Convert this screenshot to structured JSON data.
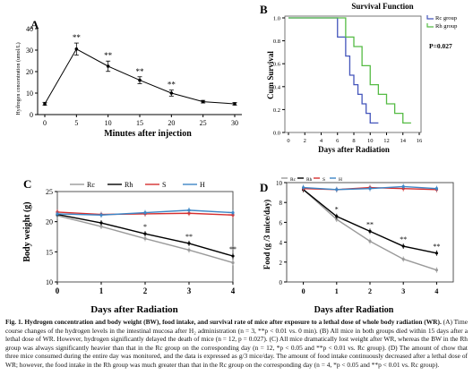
{
  "chart_data": [
    {
      "panel_label": "A",
      "type": "line",
      "xlabel": "Minutes after injection",
      "ylabel": "Hydrogen concentration (umol/L)",
      "xlim": [
        0,
        30
      ],
      "ylim": [
        0,
        40
      ],
      "xticks": [
        "0",
        "5",
        "10",
        "15",
        "20",
        "25",
        "30"
      ],
      "yticks": [
        "0",
        "10",
        "20",
        "30",
        "40"
      ],
      "series": [
        {
          "x": [
            0,
            5,
            10,
            15,
            20,
            25,
            30
          ],
          "y": [
            5,
            30.5,
            22.5,
            16,
            10,
            6,
            5
          ],
          "err": [
            0.7,
            2.8,
            2.4,
            1.6,
            1.4,
            0.6,
            0.6
          ],
          "sig": [
            "",
            "**",
            "**",
            "**",
            "**",
            "",
            ""
          ],
          "color": "#000000"
        }
      ]
    },
    {
      "panel_label": "B",
      "type": "line",
      "title": "Survival Function",
      "xlabel": "Days after Radiation",
      "ylabel": "Cum Survival",
      "xlim": [
        0,
        16
      ],
      "ylim": [
        0,
        1.0
      ],
      "xticks": [
        "0",
        "2",
        "4",
        "6",
        "8",
        "10",
        "12",
        "14",
        "16"
      ],
      "yticks": [
        "0.0",
        "0.2",
        "0.4",
        "0.6",
        "0.8",
        "1.0"
      ],
      "legend": [
        "Rc group",
        "Rh group"
      ],
      "annotation": "P=0.027",
      "series": [
        {
          "name": "Rc group",
          "color": "#4455bb",
          "steps": [
            [
              0,
              1.0
            ],
            [
              6,
              0.833
            ],
            [
              7,
              0.667
            ],
            [
              7.5,
              0.5
            ],
            [
              8,
              0.417
            ],
            [
              8.5,
              0.333
            ],
            [
              9,
              0.25
            ],
            [
              9.5,
              0.167
            ],
            [
              10,
              0.083
            ],
            [
              11,
              0.083
            ]
          ]
        },
        {
          "name": "Rh group",
          "color": "#55bb44",
          "steps": [
            [
              0,
              1.0
            ],
            [
              7,
              0.833
            ],
            [
              8,
              0.75
            ],
            [
              9,
              0.583
            ],
            [
              10,
              0.417
            ],
            [
              11,
              0.333
            ],
            [
              12,
              0.25
            ],
            [
              13,
              0.167
            ],
            [
              14,
              0.083
            ],
            [
              15,
              0.083
            ]
          ]
        }
      ]
    },
    {
      "panel_label": "C",
      "type": "line",
      "xlabel": "Days after Radiation",
      "ylabel": "Body weight (g)",
      "xlim": [
        0,
        4
      ],
      "ylim": [
        10,
        25
      ],
      "xticks": [
        "0",
        "1",
        "2",
        "3",
        "4"
      ],
      "yticks": [
        "10",
        "15",
        "20",
        "25"
      ],
      "legend": [
        "Rc",
        "Rh",
        "S",
        "H"
      ],
      "categories": [
        0,
        1,
        2,
        3,
        4
      ],
      "series": [
        {
          "name": "Rc",
          "color": "#9a9a9a",
          "values": [
            21.0,
            19.2,
            17.2,
            15.3,
            13.2
          ],
          "sig": [
            "",
            "",
            "",
            "",
            ""
          ]
        },
        {
          "name": "Rh",
          "color": "#000000",
          "values": [
            21.2,
            19.8,
            18.0,
            16.4,
            14.3
          ],
          "sig": [
            "",
            "",
            "*",
            "**",
            "**"
          ]
        },
        {
          "name": "S",
          "color": "#d62f2f",
          "values": [
            21.6,
            21.2,
            21.3,
            21.4,
            21.1
          ],
          "sig": [
            "",
            "",
            "",
            "",
            ""
          ]
        },
        {
          "name": "H",
          "color": "#3d86c6",
          "values": [
            21.3,
            21.1,
            21.5,
            21.9,
            21.5
          ],
          "sig": [
            "",
            "",
            "",
            "",
            ""
          ]
        }
      ]
    },
    {
      "panel_label": "D",
      "type": "line",
      "xlabel": "Days after Radiation",
      "ylabel": "Food (g /3 mice/day)",
      "xlim": [
        -0.5,
        4.5
      ],
      "ylim": [
        0,
        10
      ],
      "xticks": [
        "0",
        "1",
        "2",
        "3",
        "4"
      ],
      "yticks": [
        "0",
        "2",
        "4",
        "6",
        "8",
        "10"
      ],
      "legend": [
        "Rc",
        "Rh",
        "S",
        "H"
      ],
      "categories": [
        0,
        1,
        2,
        3,
        4
      ],
      "series": [
        {
          "name": "Rc",
          "color": "#9a9a9a",
          "values": [
            9.3,
            6.3,
            4.1,
            2.3,
            1.2
          ],
          "sig": [
            "",
            "",
            "",
            "",
            ""
          ]
        },
        {
          "name": "Rh",
          "color": "#000000",
          "values": [
            9.3,
            6.6,
            5.1,
            3.6,
            2.9
          ],
          "sig": [
            "",
            "*",
            "**",
            "**",
            "**"
          ]
        },
        {
          "name": "S",
          "color": "#d62f2f",
          "values": [
            9.4,
            9.3,
            9.5,
            9.4,
            9.3
          ],
          "sig": [
            "",
            "",
            "",
            "",
            ""
          ]
        },
        {
          "name": "H",
          "color": "#3d86c6",
          "values": [
            9.5,
            9.3,
            9.4,
            9.6,
            9.4
          ],
          "sig": [
            "",
            "",
            "",
            "",
            ""
          ]
        }
      ]
    }
  ],
  "caption": {
    "bold": "Fig. 1. Hydrogen concentration and body weight (BW), food intake, and survival rate of mice after exposure to a lethal dose of whole body radiation (WR).",
    "text": " (A) Time course changes of the hydrogen levels in the intestinal mucosa after H₂ administration (n = 3, **p < 0.01 vs. 0 min). (B) All mice in both groups died within 15 days after a lethal dose of WR. However, hydrogen significantly delayed the death of mice (n = 12, p = 0.027). (C) All mice dramatically lost weight after WR, whereas the BW in the Rh group was always significantly heavier than that in the Rc group on the corresponding day (n = 12, *p < 0.05 and **p < 0.01 vs. Rc group). (D) The amount of chow that three mice consumed during the entire day was monitored, and the data is expressed as g/3 mice/day. The amount of food intake continuously decreased after a lethal dose of WR; however, the food intake in the Rh group was much greater than that in the Rc group on the corresponding day (n = 4, *p < 0.05 and **p < 0.01 vs. Rc group)."
  }
}
